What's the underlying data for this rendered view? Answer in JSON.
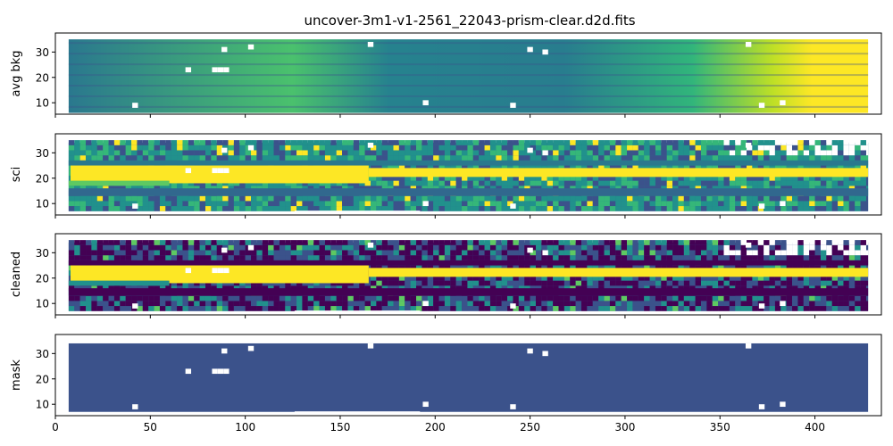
{
  "chart_data": {
    "type": "heatmap",
    "title": "uncover-3m1-v1-2561_22043-prism-clear.d2d.fits",
    "xlim": [
      0,
      435
    ],
    "ylim": [
      5.5,
      37.5
    ],
    "shared_x": true,
    "x_ticks": [
      0,
      50,
      100,
      150,
      200,
      250,
      300,
      350,
      400
    ],
    "y_ticks": [
      10,
      20,
      30
    ],
    "colormap": "viridis",
    "colormap_stops": [
      "#440154",
      "#3b528b",
      "#21918c",
      "#5ec962",
      "#fde725"
    ],
    "panels": [
      {
        "ylabel": "avg bkg",
        "description_values": {
          "columns_valid": [
            7,
            428
          ],
          "rows_valid": [
            6,
            35
          ],
          "trend": "increases toward larger x; saturated (yellow) beyond x~395"
        }
      },
      {
        "ylabel": "sci",
        "description_values": {
          "columns_valid": [
            7,
            428
          ],
          "rows_valid": [
            7,
            34
          ],
          "trace_rows": [
            20,
            24
          ],
          "trace_bright_region_x": [
            8,
            165
          ],
          "masked_pixels": [
            [
              42,
              9
            ],
            [
              89,
              31
            ],
            [
              103,
              32
            ],
            [
              70,
              23
            ],
            [
              84,
              23
            ],
            [
              87,
              23
            ],
            [
              90,
              23
            ],
            [
              166,
              33
            ],
            [
              195,
              10
            ],
            [
              241,
              9
            ],
            [
              250,
              31
            ],
            [
              258,
              30
            ],
            [
              372,
              9
            ],
            [
              383,
              10
            ],
            [
              365,
              33
            ]
          ]
        }
      },
      {
        "ylabel": "cleaned",
        "description_values": {
          "columns_valid": [
            7,
            428
          ],
          "rows_valid": [
            7,
            34
          ],
          "trace_rows": [
            20,
            24
          ]
        }
      },
      {
        "ylabel": "mask",
        "description_values": {
          "columns_valid": [
            7,
            428
          ],
          "rows_valid": [
            7,
            34
          ],
          "value": "uniform"
        }
      }
    ]
  }
}
